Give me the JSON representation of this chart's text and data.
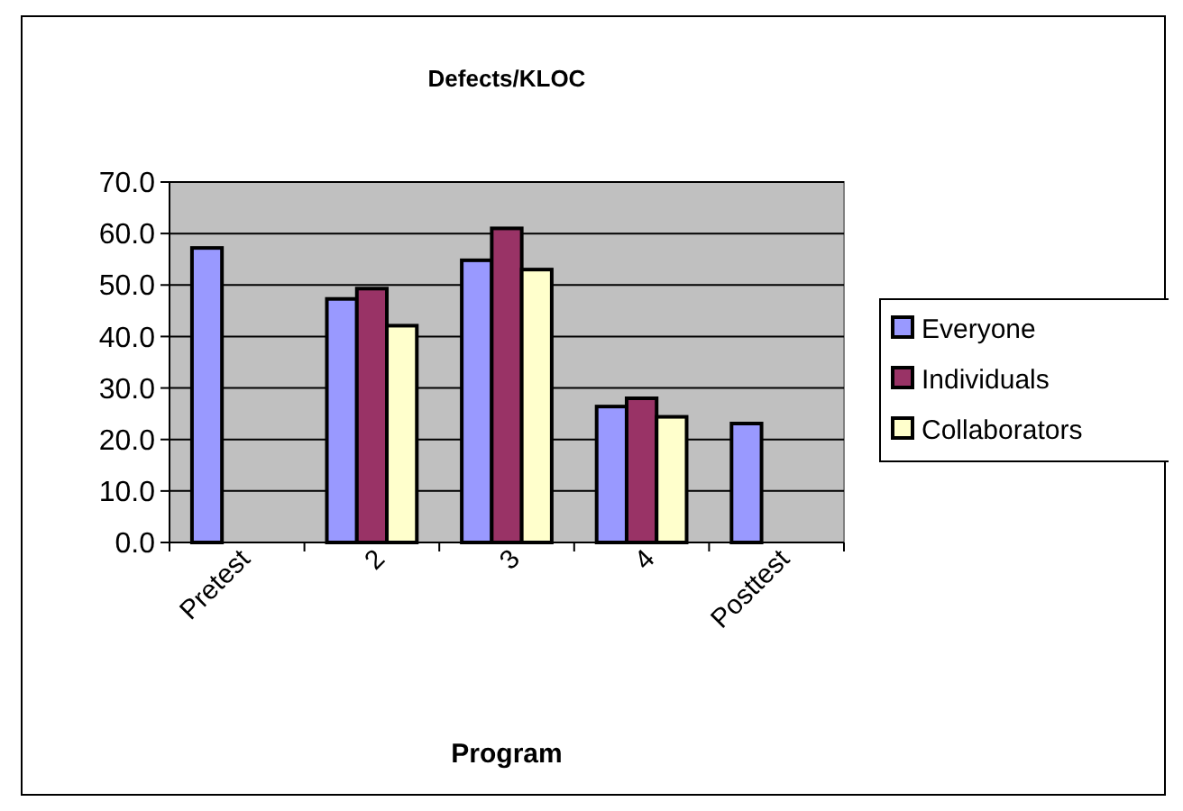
{
  "chart_data": {
    "type": "bar",
    "title": "Defects/KLOC",
    "xlabel": "Program",
    "categories": [
      "Pretest",
      "2",
      "3",
      "4",
      "Posttest"
    ],
    "series": [
      {
        "name": "Everyone",
        "color": "#9999ff",
        "values": [
          57.2,
          47.3,
          54.8,
          26.4,
          23.1
        ]
      },
      {
        "name": "Individuals",
        "color": "#993366",
        "values": [
          null,
          49.3,
          61.0,
          28.0,
          null
        ]
      },
      {
        "name": "Collaborators",
        "color": "#ffffcc",
        "values": [
          null,
          42.1,
          53.0,
          24.4,
          null
        ]
      }
    ],
    "ylim": [
      0,
      70
    ],
    "yticks": [
      {
        "value": 0,
        "label": "0.0"
      },
      {
        "value": 10,
        "label": "10.0"
      },
      {
        "value": 20,
        "label": "20.0"
      },
      {
        "value": 30,
        "label": "30.0"
      },
      {
        "value": 40,
        "label": "40.0"
      },
      {
        "value": 50,
        "label": "50.0"
      },
      {
        "value": 60,
        "label": "60.0"
      },
      {
        "value": 70,
        "label": "70.0"
      }
    ],
    "grid": "y",
    "legend": "right"
  }
}
